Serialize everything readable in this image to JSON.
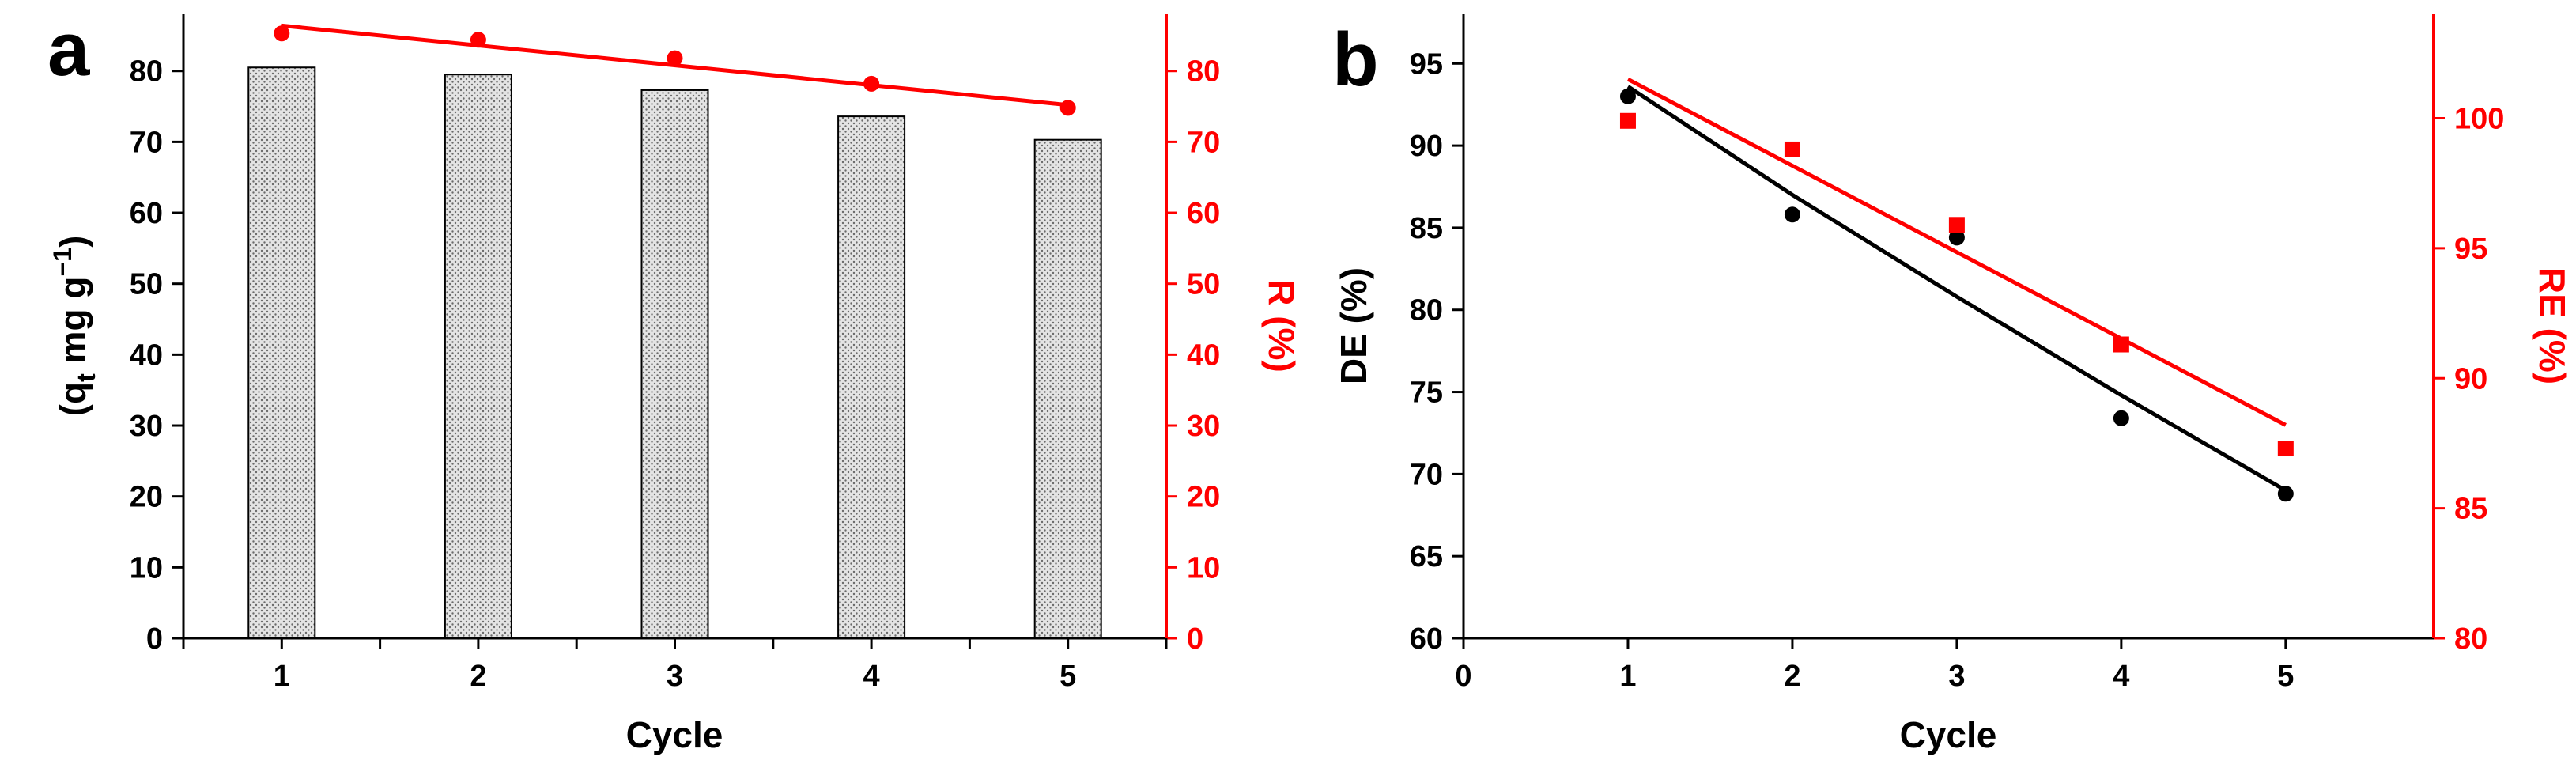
{
  "colors": {
    "primary": "#000000",
    "secondary": "#ff0000",
    "bar_fill": "#d8d8d8"
  },
  "chart_data": [
    {
      "panel_label": "a",
      "type": "bar",
      "xlabel": "Cycle",
      "ylabel_left": "(q",
      "ylabel_left_sub": "t",
      "ylabel_left_rest": " mg g",
      "ylabel_left_sup": "−1",
      "ylabel_left_close": ")",
      "ylabel_right": "R (%)",
      "categories": [
        "1",
        "2",
        "3",
        "4",
        "5"
      ],
      "y_left_lim": [
        0,
        88
      ],
      "y_left_ticks": [
        "0",
        "10",
        "20",
        "30",
        "40",
        "50",
        "60",
        "70",
        "80"
      ],
      "y_right_lim": [
        0,
        88
      ],
      "y_right_ticks": [
        "0",
        "10",
        "20",
        "30",
        "40",
        "50",
        "60",
        "70",
        "80"
      ],
      "series": [
        {
          "kind": "bar",
          "axis": "left",
          "values": [
            80.5,
            79.5,
            77.3,
            73.6,
            70.3
          ]
        },
        {
          "kind": "scatter",
          "axis": "right",
          "values": [
            85.3,
            84.4,
            81.8,
            78.2,
            74.8
          ]
        },
        {
          "kind": "fit-line",
          "axis": "right",
          "x": [
            1,
            5
          ],
          "values": [
            86.4,
            75.2
          ]
        }
      ]
    },
    {
      "panel_label": "b",
      "type": "scatter",
      "xlabel": "Cycle",
      "ylabel_left": "DE (%)",
      "ylabel_right": "RE (%)",
      "x_ticks": [
        "0",
        "1",
        "2",
        "3",
        "4",
        "5"
      ],
      "xlim": [
        0,
        5.9
      ],
      "y_left_lim": [
        60,
        98
      ],
      "y_left_ticks": [
        "60",
        "65",
        "70",
        "75",
        "80",
        "85",
        "90",
        "95"
      ],
      "y_right_lim": [
        80,
        104
      ],
      "y_right_ticks": [
        "80",
        "85",
        "90",
        "95",
        "100"
      ],
      "series": [
        {
          "kind": "scatter",
          "axis": "left",
          "color": "black",
          "marker": "circle",
          "x": [
            1,
            2,
            3,
            4,
            5
          ],
          "values": [
            93.0,
            85.8,
            84.4,
            73.4,
            68.8
          ]
        },
        {
          "kind": "fit-line",
          "axis": "left",
          "color": "black",
          "x": [
            1,
            2,
            3,
            4,
            5
          ],
          "values": [
            93.6,
            87.0,
            80.8,
            74.8,
            69.0
          ]
        },
        {
          "kind": "scatter",
          "axis": "right",
          "color": "red",
          "marker": "square",
          "x": [
            1,
            2,
            3,
            4,
            5
          ],
          "values": [
            99.9,
            98.8,
            95.9,
            91.3,
            87.3
          ]
        },
        {
          "kind": "fit-line",
          "axis": "right",
          "color": "red",
          "x": [
            1,
            5
          ],
          "values": [
            101.5,
            88.2
          ]
        }
      ]
    }
  ]
}
